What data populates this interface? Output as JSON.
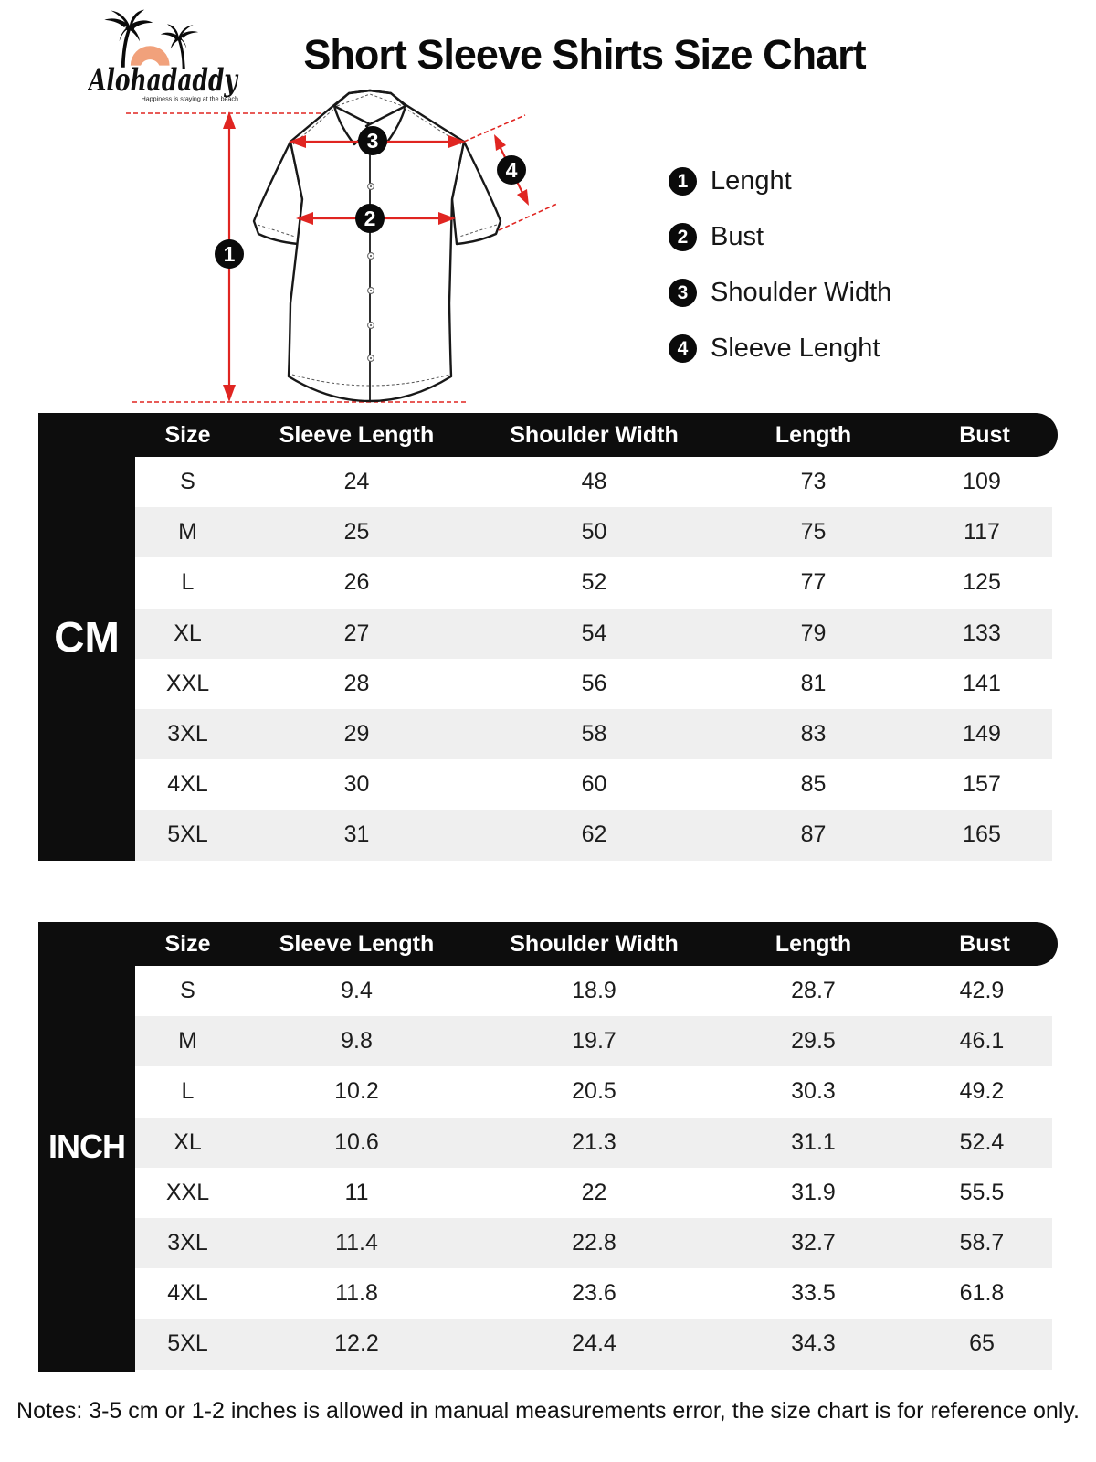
{
  "brand": {
    "name": "Alohadaddy",
    "tagline": "Happiness is staying at the beach"
  },
  "title": "Short Sleeve Shirts Size Chart",
  "legend": {
    "items": [
      {
        "num": "1",
        "label": "Lenght"
      },
      {
        "num": "2",
        "label": "Bust"
      },
      {
        "num": "3",
        "label": "Shoulder Width"
      },
      {
        "num": "4",
        "label": "Sleeve Lenght"
      }
    ]
  },
  "columns": [
    "Size",
    "Sleeve Length",
    "Shoulder Width",
    "Length",
    "Bust"
  ],
  "tables": [
    {
      "unit": "CM",
      "rows": [
        [
          "S",
          "24",
          "48",
          "73",
          "109"
        ],
        [
          "M",
          "25",
          "50",
          "75",
          "117"
        ],
        [
          "L",
          "26",
          "52",
          "77",
          "125"
        ],
        [
          "XL",
          "27",
          "54",
          "79",
          "133"
        ],
        [
          "XXL",
          "28",
          "56",
          "81",
          "141"
        ],
        [
          "3XL",
          "29",
          "58",
          "83",
          "149"
        ],
        [
          "4XL",
          "30",
          "60",
          "85",
          "157"
        ],
        [
          "5XL",
          "31",
          "62",
          "87",
          "165"
        ]
      ]
    },
    {
      "unit": "INCH",
      "rows": [
        [
          "S",
          "9.4",
          "18.9",
          "28.7",
          "42.9"
        ],
        [
          "M",
          "9.8",
          "19.7",
          "29.5",
          "46.1"
        ],
        [
          "L",
          "10.2",
          "20.5",
          "30.3",
          "49.2"
        ],
        [
          "XL",
          "10.6",
          "21.3",
          "31.1",
          "52.4"
        ],
        [
          "XXL",
          "11",
          "22",
          "31.9",
          "55.5"
        ],
        [
          "3XL",
          "11.4",
          "22.8",
          "32.7",
          "58.7"
        ],
        [
          "4XL",
          "11.8",
          "23.6",
          "33.5",
          "61.8"
        ],
        [
          "5XL",
          "12.2",
          "24.4",
          "34.3",
          "65"
        ]
      ]
    }
  ],
  "notes": "Notes: 3-5 cm or 1-2 inches is allowed in manual measurements error, the size chart is for reference only.",
  "colors": {
    "accent_red": "#e02521",
    "header_black": "#0d0d0d",
    "row_alt": "#efefef",
    "logo_orange": "#f1a17b"
  }
}
